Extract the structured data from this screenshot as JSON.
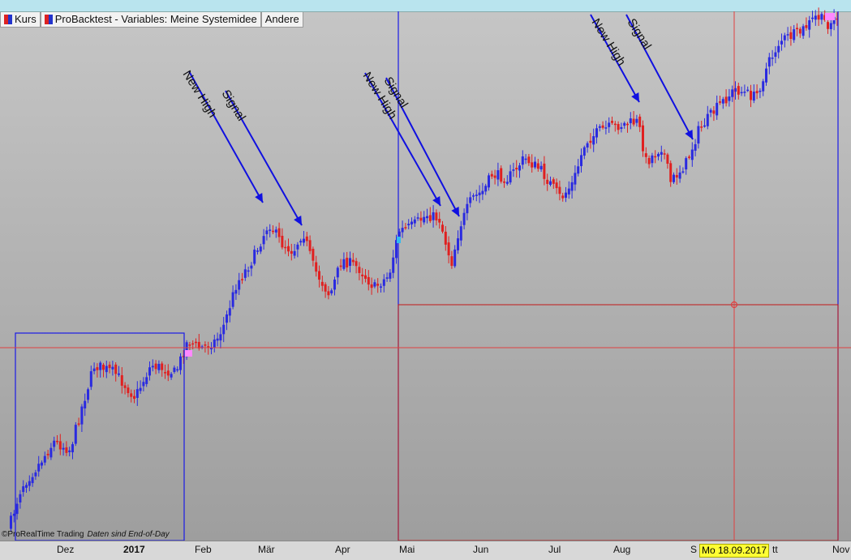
{
  "tabs": [
    {
      "label": "Kurs",
      "icon": "price-chart-icon"
    },
    {
      "label": "ProBacktest - Variables: Meine Systemidee",
      "icon": "backtest-icon"
    },
    {
      "label": "Andere",
      "icon": ""
    }
  ],
  "x_axis": {
    "labels": [
      "Dez",
      "2017",
      "Feb",
      "Mär",
      "Apr",
      "Mai",
      "Jun",
      "Jul",
      "Aug",
      "S",
      "tt",
      "Nov"
    ],
    "cursor_date": "Mo 18.09.2017"
  },
  "annotations": [
    "New High",
    "Signal",
    "New High",
    "Signal",
    "New High",
    "Signal"
  ],
  "footer": {
    "brand": "ProRealTime Trading",
    "note": "Daten sind End-of-Day"
  },
  "colors": {
    "up": "#2a2ae0",
    "down": "#e02020",
    "boxes": "#1a1ae6",
    "crosshair": "#e04040"
  },
  "chart_data": {
    "type": "candlestick",
    "period": "daily, Nov 2016 - Nov 2017",
    "trend": "rising",
    "new_high_signal_pairs": 3,
    "y_axis": "unlabeled"
  }
}
